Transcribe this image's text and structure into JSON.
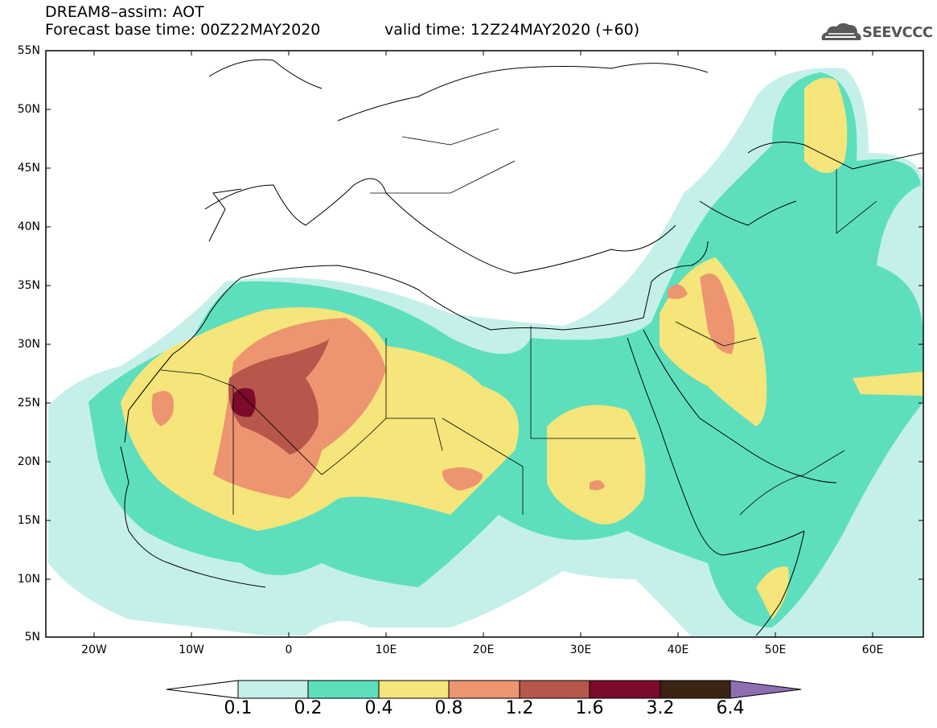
{
  "header": {
    "line1": "DREAM8–assim: AOT",
    "line2": "Forecast base time: 00Z22MAY2020",
    "valid": "valid time: 12Z24MAY2020 (+60)",
    "logo": "SEEVCCC"
  },
  "map": {
    "variable": "AOT",
    "lon_range": [
      -25,
      65
    ],
    "lat_range": [
      5,
      55
    ],
    "y_ticks": [
      "55N",
      "50N",
      "45N",
      "40N",
      "35N",
      "30N",
      "25N",
      "20N",
      "15N",
      "10N",
      "5N"
    ],
    "x_ticks": [
      "20W",
      "10W",
      "0",
      "10E",
      "20E",
      "30E",
      "40E",
      "50E",
      "60E"
    ],
    "colors": {
      "c01": "#c5f0ea",
      "c02": "#5ddfbe",
      "c04": "#f5e57a",
      "c08": "#ec9570",
      "c12": "#b7564a",
      "c16": "#7c0a2b",
      "c32": "#3c2414",
      "c64": "#8e6fb3"
    }
  },
  "colorbar": {
    "labels": [
      "0.1",
      "0.2",
      "0.4",
      "0.8",
      "1.2",
      "1.6",
      "3.2",
      "6.4"
    ]
  }
}
